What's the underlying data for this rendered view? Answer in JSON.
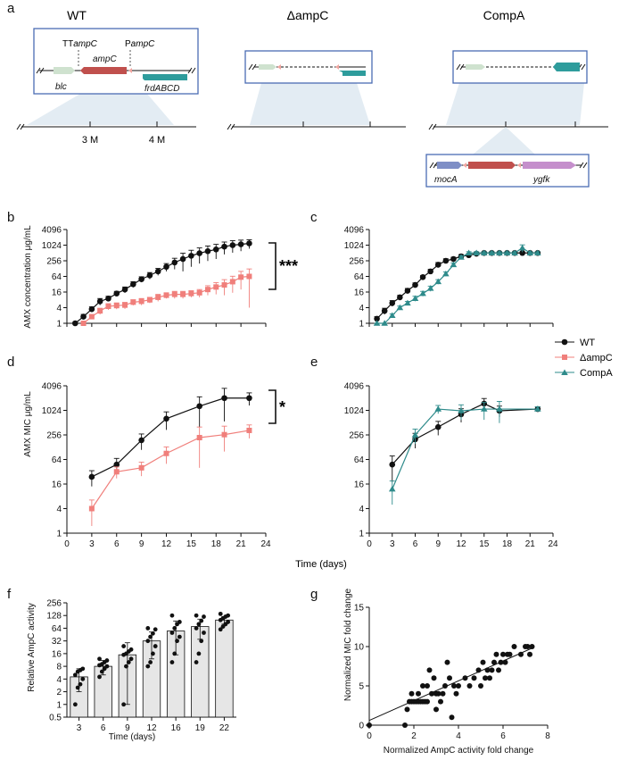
{
  "figure": {
    "panel_letters": [
      "a",
      "b",
      "c",
      "d",
      "e",
      "f",
      "g"
    ],
    "strains": [
      "WT",
      "ΔampC",
      "CompA"
    ]
  },
  "panel_a": {
    "titles": [
      "WT",
      "ΔampC",
      "CompA"
    ],
    "wt_labels": {
      "tt": "TT",
      "tt_gene": "ampC",
      "p": "P",
      "p_gene": "ampC",
      "ampc": "ampC",
      "blc": "blc",
      "frd": "frdABCD"
    },
    "genome_ticks": [
      "3 M",
      "4 M"
    ],
    "insert_labels": {
      "mocA": "mocA",
      "ygfk": "ygfk"
    },
    "gene_colors": {
      "blc": "#cfe2cf",
      "ampC": "#c0504d",
      "frdABCD": "#2e9c9c",
      "mocA": "#7f8fc6",
      "ygfk": "#c58fcc",
      "box": "#4a6cb3",
      "ampC_light": "#f2a6a0"
    }
  },
  "legend": [
    {
      "label": "WT",
      "color": "#111111",
      "marker": "circle"
    },
    {
      "label": "ΔampC",
      "color": "#f07f7b",
      "marker": "square"
    },
    {
      "label": "CompA",
      "color": "#2e8b8b",
      "marker": "triangle"
    }
  ],
  "shared_xlabel": "Time (days)",
  "chart_data": [
    {
      "id": "b",
      "type": "line",
      "ylabel": "AMX concentration μg/mL",
      "xlim": [
        0,
        24
      ],
      "ylim": [
        1,
        4096
      ],
      "yscale": "log2",
      "yticks": [
        "1",
        "4",
        "16",
        "64",
        "256",
        "1024",
        "4096"
      ],
      "xticks": [],
      "significance": "***",
      "series": [
        {
          "name": "WT",
          "color": "#111111",
          "marker": "circle",
          "x": [
            1,
            2,
            3,
            4,
            5,
            6,
            7,
            8,
            9,
            10,
            11,
            12,
            13,
            14,
            15,
            16,
            17,
            18,
            19,
            20,
            21,
            22
          ],
          "y": [
            1,
            1.8,
            3.5,
            7,
            9,
            14,
            20,
            32,
            50,
            70,
            100,
            150,
            220,
            300,
            400,
            500,
            600,
            700,
            900,
            1024,
            1100,
            1200
          ],
          "err": [
            0.1,
            0.4,
            0.8,
            2,
            2,
            3,
            5,
            8,
            12,
            20,
            30,
            50,
            100,
            200,
            250,
            300,
            350,
            400,
            450,
            500,
            500,
            450
          ]
        },
        {
          "name": "ΔampC",
          "color": "#f07f7b",
          "marker": "square",
          "x": [
            2,
            3,
            4,
            5,
            6,
            7,
            8,
            9,
            10,
            11,
            12,
            13,
            14,
            15,
            16,
            17,
            18,
            19,
            20,
            21,
            22
          ],
          "y": [
            1,
            1.8,
            3,
            4.5,
            4.8,
            5,
            6.5,
            7,
            8,
            10,
            12,
            13,
            13,
            14,
            15,
            20,
            25,
            30,
            40,
            60,
            64
          ],
          "err": [
            0.1,
            0.3,
            0.8,
            1.2,
            1.3,
            1.4,
            1.6,
            2,
            2,
            3,
            3,
            4,
            4,
            4,
            5,
            8,
            12,
            18,
            25,
            40,
            60
          ]
        }
      ]
    },
    {
      "id": "c",
      "type": "line",
      "ylabel": "",
      "xlim": [
        0,
        24
      ],
      "ylim": [
        1,
        4096
      ],
      "yscale": "log2",
      "yticks": [
        "1",
        "4",
        "16",
        "64",
        "256",
        "1024",
        "4096"
      ],
      "xticks": [],
      "series": [
        {
          "name": "WT",
          "color": "#111111",
          "marker": "circle",
          "x": [
            1,
            2,
            3,
            4,
            5,
            6,
            7,
            8,
            9,
            10,
            11,
            12,
            13,
            14,
            15,
            16,
            17,
            18,
            19,
            20,
            21,
            22
          ],
          "y": [
            1.5,
            3,
            6,
            10,
            18,
            30,
            60,
            100,
            180,
            256,
            300,
            380,
            420,
            480,
            512,
            512,
            512,
            512,
            512,
            512,
            512,
            512
          ],
          "err": [
            0.3,
            0.8,
            1.5,
            2,
            4,
            6,
            10,
            20,
            40,
            50,
            50,
            60,
            60,
            60,
            60,
            60,
            60,
            60,
            60,
            60,
            60,
            60
          ]
        },
        {
          "name": "CompA",
          "color": "#2e8b8b",
          "marker": "triangle",
          "x": [
            1,
            2,
            3,
            4,
            5,
            6,
            7,
            8,
            9,
            10,
            11,
            12,
            13,
            14,
            15,
            16,
            17,
            18,
            19,
            20,
            21,
            22
          ],
          "y": [
            1,
            1,
            2,
            4,
            6,
            9,
            14,
            22,
            40,
            80,
            180,
            350,
            512,
            512,
            512,
            512,
            512,
            512,
            512,
            800,
            512,
            512
          ],
          "err": [
            0,
            0,
            0.3,
            0.6,
            1,
            2,
            3,
            5,
            8,
            15,
            30,
            50,
            60,
            60,
            60,
            60,
            60,
            60,
            60,
            250,
            60,
            60
          ]
        }
      ]
    },
    {
      "id": "d",
      "type": "line",
      "ylabel": "AMX MIC μg/mL",
      "xlim": [
        0,
        24
      ],
      "ylim": [
        1,
        4096
      ],
      "yscale": "log2",
      "yticks": [
        "1",
        "4",
        "16",
        "64",
        "256",
        "1024",
        "4096"
      ],
      "xticks": [
        "0",
        "3",
        "6",
        "9",
        "12",
        "15",
        "18",
        "21",
        "24"
      ],
      "significance": "*",
      "series": [
        {
          "name": "WT",
          "color": "#111111",
          "marker": "circle",
          "x": [
            3,
            6,
            9,
            12,
            16,
            19,
            22
          ],
          "y": [
            24,
            48,
            190,
            640,
            1300,
            2048,
            2048
          ],
          "err": [
            10,
            20,
            80,
            300,
            900,
            1500,
            700
          ]
        },
        {
          "name": "ΔampC",
          "color": "#f07f7b",
          "marker": "square",
          "x": [
            3,
            6,
            9,
            12,
            16,
            19,
            22
          ],
          "y": [
            4,
            32,
            40,
            90,
            220,
            260,
            330
          ],
          "err": [
            2.5,
            10,
            15,
            40,
            180,
            160,
            120
          ]
        }
      ]
    },
    {
      "id": "e",
      "type": "line",
      "ylabel": "",
      "xlim": [
        0,
        24
      ],
      "ylim": [
        1,
        4096
      ],
      "yscale": "log2",
      "yticks": [
        "1",
        "4",
        "16",
        "64",
        "256",
        "1024",
        "4096"
      ],
      "xticks": [
        "0",
        "3",
        "6",
        "9",
        "12",
        "15",
        "18",
        "21",
        "24"
      ],
      "series": [
        {
          "name": "WT",
          "color": "#111111",
          "marker": "circle",
          "x": [
            3,
            6,
            9,
            12,
            15,
            17,
            22
          ],
          "y": [
            48,
            200,
            400,
            820,
            1500,
            1000,
            1100
          ],
          "err": [
            30,
            80,
            150,
            300,
            500,
            300,
            150
          ]
        },
        {
          "name": "CompA",
          "color": "#2e8b8b",
          "marker": "triangle",
          "x": [
            3,
            6,
            9,
            12,
            15,
            17,
            22
          ],
          "y": [
            12,
            256,
            1100,
            1000,
            1100,
            1100,
            1100
          ],
          "err": [
            7,
            100,
            250,
            400,
            500,
            600,
            150
          ]
        }
      ]
    },
    {
      "id": "f",
      "type": "bar",
      "ylabel": "Relative AmpC activity",
      "xlabel": "Time (days)",
      "categories": [
        "3",
        "6",
        "9",
        "12",
        "16",
        "19",
        "22"
      ],
      "values": [
        4.5,
        8,
        15,
        32,
        55,
        70,
        100
      ],
      "err": [
        2.5,
        3,
        14,
        20,
        40,
        35,
        20
      ],
      "yscale": "log2",
      "ylim": [
        0.5,
        256
      ],
      "yticks": [
        "0.5",
        "1",
        "2",
        "4",
        "8",
        "16",
        "32",
        "64",
        "128",
        "256"
      ],
      "points": [
        [
          1,
          2.5,
          3,
          4,
          5,
          6,
          6.5,
          7
        ],
        [
          4.5,
          6,
          7,
          8,
          8.5,
          9,
          10,
          11,
          12
        ],
        [
          1,
          8,
          10,
          12,
          15,
          16,
          18,
          20,
          24
        ],
        [
          8,
          10,
          16,
          24,
          32,
          40,
          48,
          60,
          64
        ],
        [
          10,
          16,
          32,
          40,
          50,
          64,
          80,
          90,
          128
        ],
        [
          10,
          16,
          32,
          50,
          64,
          80,
          96,
          120,
          128
        ],
        [
          60,
          70,
          80,
          90,
          100,
          110,
          120,
          128,
          140
        ]
      ]
    },
    {
      "id": "g",
      "type": "scatter",
      "xlabel": "Normalized AmpC activity fold change",
      "ylabel": "Normalized MIC fold change",
      "xlim": [
        0,
        8
      ],
      "ylim": [
        0,
        15
      ],
      "xticks": [
        "0",
        "2",
        "4",
        "6",
        "8"
      ],
      "yticks": [
        "0",
        "5",
        "10",
        "15"
      ],
      "fit": {
        "x": [
          0,
          7.3
        ],
        "y": [
          0.6,
          9.8
        ]
      },
      "points": [
        [
          0,
          0
        ],
        [
          1.6,
          0
        ],
        [
          1.7,
          2
        ],
        [
          1.8,
          3
        ],
        [
          1.9,
          3
        ],
        [
          2.0,
          3
        ],
        [
          2.1,
          3
        ],
        [
          2.2,
          3
        ],
        [
          2.3,
          3
        ],
        [
          2.4,
          3
        ],
        [
          2.5,
          3
        ],
        [
          2.6,
          3
        ],
        [
          1.9,
          4
        ],
        [
          2.2,
          4
        ],
        [
          2.4,
          5
        ],
        [
          2.6,
          5
        ],
        [
          2.7,
          7
        ],
        [
          2.8,
          4
        ],
        [
          2.9,
          6
        ],
        [
          3.0,
          2
        ],
        [
          3.0,
          4
        ],
        [
          3.1,
          4
        ],
        [
          3.2,
          3
        ],
        [
          3.3,
          4
        ],
        [
          3.4,
          5
        ],
        [
          3.5,
          8
        ],
        [
          3.6,
          6
        ],
        [
          3.7,
          1
        ],
        [
          3.8,
          5
        ],
        [
          3.9,
          4
        ],
        [
          4.0,
          5
        ],
        [
          4.3,
          6
        ],
        [
          4.5,
          5
        ],
        [
          4.7,
          6
        ],
        [
          4.9,
          7
        ],
        [
          5.0,
          5
        ],
        [
          5.1,
          8
        ],
        [
          5.2,
          6
        ],
        [
          5.3,
          7
        ],
        [
          5.4,
          6
        ],
        [
          5.5,
          7
        ],
        [
          5.6,
          8
        ],
        [
          5.7,
          9
        ],
        [
          5.8,
          7
        ],
        [
          5.9,
          8
        ],
        [
          6.0,
          9
        ],
        [
          6.1,
          8
        ],
        [
          6.2,
          9
        ],
        [
          6.3,
          9
        ],
        [
          6.5,
          10
        ],
        [
          6.8,
          9
        ],
        [
          7.0,
          10
        ],
        [
          7.1,
          10
        ],
        [
          7.2,
          9
        ],
        [
          7.3,
          10
        ]
      ]
    }
  ]
}
